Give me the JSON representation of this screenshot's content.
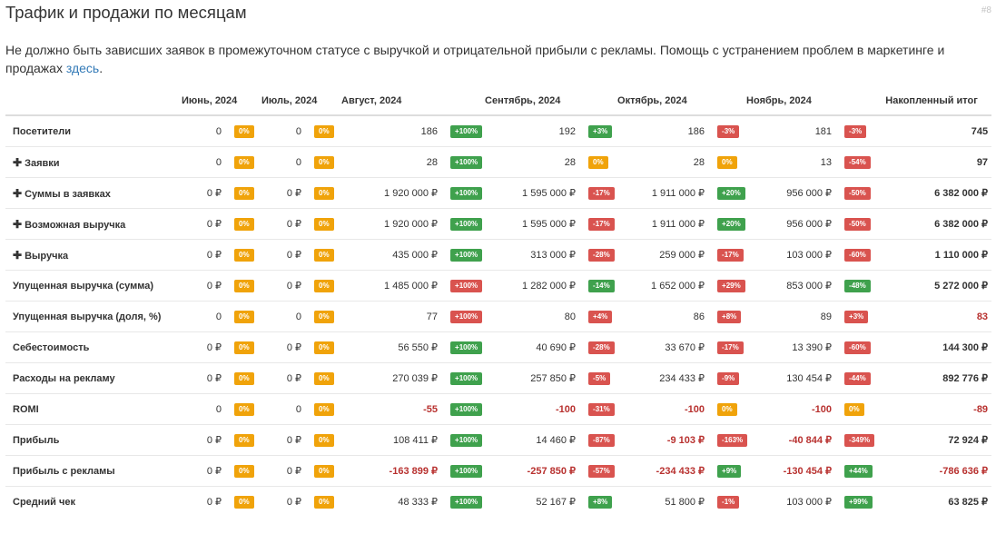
{
  "page": {
    "title": "Трафик и продажи по месяцам",
    "id_label": "#8",
    "description_text": "Не должно быть зависших заявок в промежуточном статусе с выручкой и отрицательной прибыли с рекламы. Помощь с устранением проблем в маркетинге и продажах ",
    "description_link": "здесь",
    "description_tail": "."
  },
  "colors": {
    "orange": "#f0a30a",
    "green": "#3fa14d",
    "red": "#d9534f",
    "negative_text": "#b8312f",
    "link": "#337ab7"
  },
  "table": {
    "headers": [
      "Июнь, 2024",
      "Июль, 2024",
      "Август, 2024",
      "Сентябрь, 2024",
      "Октябрь, 2024",
      "Ноябрь, 2024",
      "Накопленный итог"
    ],
    "rows": [
      {
        "label": "Посетители",
        "expandable": false,
        "cells": [
          {
            "v": "0",
            "p": "0%",
            "c": "orange"
          },
          {
            "v": "0",
            "p": "0%",
            "c": "orange"
          },
          {
            "v": "186",
            "p": "+100%",
            "c": "green"
          },
          {
            "v": "192",
            "p": "+3%",
            "c": "green"
          },
          {
            "v": "186",
            "p": "-3%",
            "c": "red"
          },
          {
            "v": "181",
            "p": "-3%",
            "c": "red"
          }
        ],
        "total": "745",
        "total_neg": false
      },
      {
        "label": "Заявки",
        "expandable": true,
        "cells": [
          {
            "v": "0",
            "p": "0%",
            "c": "orange"
          },
          {
            "v": "0",
            "p": "0%",
            "c": "orange"
          },
          {
            "v": "28",
            "p": "+100%",
            "c": "green"
          },
          {
            "v": "28",
            "p": "0%",
            "c": "orange"
          },
          {
            "v": "28",
            "p": "0%",
            "c": "orange"
          },
          {
            "v": "13",
            "p": "-54%",
            "c": "red"
          }
        ],
        "total": "97",
        "total_neg": false
      },
      {
        "label": "Суммы в заявках",
        "expandable": true,
        "cells": [
          {
            "v": "0 ₽",
            "p": "0%",
            "c": "orange"
          },
          {
            "v": "0 ₽",
            "p": "0%",
            "c": "orange"
          },
          {
            "v": "1 920 000 ₽",
            "p": "+100%",
            "c": "green"
          },
          {
            "v": "1 595 000 ₽",
            "p": "-17%",
            "c": "red"
          },
          {
            "v": "1 911 000 ₽",
            "p": "+20%",
            "c": "green"
          },
          {
            "v": "956 000 ₽",
            "p": "-50%",
            "c": "red"
          }
        ],
        "total": "6 382 000 ₽",
        "total_neg": false
      },
      {
        "label": "Возможная выручка",
        "expandable": true,
        "cells": [
          {
            "v": "0 ₽",
            "p": "0%",
            "c": "orange"
          },
          {
            "v": "0 ₽",
            "p": "0%",
            "c": "orange"
          },
          {
            "v": "1 920 000 ₽",
            "p": "+100%",
            "c": "green"
          },
          {
            "v": "1 595 000 ₽",
            "p": "-17%",
            "c": "red"
          },
          {
            "v": "1 911 000 ₽",
            "p": "+20%",
            "c": "green"
          },
          {
            "v": "956 000 ₽",
            "p": "-50%",
            "c": "red"
          }
        ],
        "total": "6 382 000 ₽",
        "total_neg": false
      },
      {
        "label": "Выручка",
        "expandable": true,
        "cells": [
          {
            "v": "0 ₽",
            "p": "0%",
            "c": "orange"
          },
          {
            "v": "0 ₽",
            "p": "0%",
            "c": "orange"
          },
          {
            "v": "435 000 ₽",
            "p": "+100%",
            "c": "green"
          },
          {
            "v": "313 000 ₽",
            "p": "-28%",
            "c": "red"
          },
          {
            "v": "259 000 ₽",
            "p": "-17%",
            "c": "red"
          },
          {
            "v": "103 000 ₽",
            "p": "-60%",
            "c": "red"
          }
        ],
        "total": "1 110 000 ₽",
        "total_neg": false
      },
      {
        "label": "Упущенная выручка (сумма)",
        "expandable": false,
        "cells": [
          {
            "v": "0 ₽",
            "p": "0%",
            "c": "orange"
          },
          {
            "v": "0 ₽",
            "p": "0%",
            "c": "orange"
          },
          {
            "v": "1 485 000 ₽",
            "p": "+100%",
            "c": "red"
          },
          {
            "v": "1 282 000 ₽",
            "p": "-14%",
            "c": "green"
          },
          {
            "v": "1 652 000 ₽",
            "p": "+29%",
            "c": "red"
          },
          {
            "v": "853 000 ₽",
            "p": "-48%",
            "c": "green"
          }
        ],
        "total": "5 272 000 ₽",
        "total_neg": false
      },
      {
        "label": "Упущенная выручка (доля, %)",
        "expandable": false,
        "cells": [
          {
            "v": "0",
            "p": "0%",
            "c": "orange"
          },
          {
            "v": "0",
            "p": "0%",
            "c": "orange"
          },
          {
            "v": "77",
            "p": "+100%",
            "c": "red"
          },
          {
            "v": "80",
            "p": "+4%",
            "c": "red"
          },
          {
            "v": "86",
            "p": "+8%",
            "c": "red"
          },
          {
            "v": "89",
            "p": "+3%",
            "c": "red"
          }
        ],
        "total": "83",
        "total_neg": true
      },
      {
        "label": "Себестоимость",
        "expandable": false,
        "cells": [
          {
            "v": "0 ₽",
            "p": "0%",
            "c": "orange"
          },
          {
            "v": "0 ₽",
            "p": "0%",
            "c": "orange"
          },
          {
            "v": "56 550 ₽",
            "p": "+100%",
            "c": "green"
          },
          {
            "v": "40 690 ₽",
            "p": "-28%",
            "c": "red"
          },
          {
            "v": "33 670 ₽",
            "p": "-17%",
            "c": "red"
          },
          {
            "v": "13 390 ₽",
            "p": "-60%",
            "c": "red"
          }
        ],
        "total": "144 300 ₽",
        "total_neg": false
      },
      {
        "label": "Расходы на рекламу",
        "expandable": false,
        "cells": [
          {
            "v": "0 ₽",
            "p": "0%",
            "c": "orange"
          },
          {
            "v": "0 ₽",
            "p": "0%",
            "c": "orange"
          },
          {
            "v": "270 039 ₽",
            "p": "+100%",
            "c": "green"
          },
          {
            "v": "257 850 ₽",
            "p": "-5%",
            "c": "red"
          },
          {
            "v": "234 433 ₽",
            "p": "-9%",
            "c": "red"
          },
          {
            "v": "130 454 ₽",
            "p": "-44%",
            "c": "red"
          }
        ],
        "total": "892 776 ₽",
        "total_neg": false
      },
      {
        "label": "ROMI",
        "expandable": false,
        "cells": [
          {
            "v": "0",
            "p": "0%",
            "c": "orange"
          },
          {
            "v": "0",
            "p": "0%",
            "c": "orange"
          },
          {
            "v": "-55",
            "p": "+100%",
            "c": "green",
            "neg": true
          },
          {
            "v": "-100",
            "p": "-31%",
            "c": "red",
            "neg": true
          },
          {
            "v": "-100",
            "p": "0%",
            "c": "orange",
            "neg": true
          },
          {
            "v": "-100",
            "p": "0%",
            "c": "orange",
            "neg": true
          }
        ],
        "total": "-89",
        "total_neg": true
      },
      {
        "label": "Прибыль",
        "expandable": false,
        "cells": [
          {
            "v": "0 ₽",
            "p": "0%",
            "c": "orange"
          },
          {
            "v": "0 ₽",
            "p": "0%",
            "c": "orange"
          },
          {
            "v": "108 411 ₽",
            "p": "+100%",
            "c": "green"
          },
          {
            "v": "14 460 ₽",
            "p": "-87%",
            "c": "red"
          },
          {
            "v": "-9 103 ₽",
            "p": "-163%",
            "c": "red",
            "neg": true
          },
          {
            "v": "-40 844 ₽",
            "p": "-349%",
            "c": "red",
            "neg": true
          }
        ],
        "total": "72 924 ₽",
        "total_neg": false
      },
      {
        "label": "Прибыль с рекламы",
        "expandable": false,
        "cells": [
          {
            "v": "0 ₽",
            "p": "0%",
            "c": "orange"
          },
          {
            "v": "0 ₽",
            "p": "0%",
            "c": "orange"
          },
          {
            "v": "-163 899 ₽",
            "p": "+100%",
            "c": "green",
            "neg": true
          },
          {
            "v": "-257 850 ₽",
            "p": "-57%",
            "c": "red",
            "neg": true
          },
          {
            "v": "-234 433 ₽",
            "p": "+9%",
            "c": "green",
            "neg": true
          },
          {
            "v": "-130 454 ₽",
            "p": "+44%",
            "c": "green",
            "neg": true
          }
        ],
        "total": "-786 636 ₽",
        "total_neg": true
      },
      {
        "label": "Средний чек",
        "expandable": false,
        "cells": [
          {
            "v": "0 ₽",
            "p": "0%",
            "c": "orange"
          },
          {
            "v": "0 ₽",
            "p": "0%",
            "c": "orange"
          },
          {
            "v": "48 333 ₽",
            "p": "+100%",
            "c": "green"
          },
          {
            "v": "52 167 ₽",
            "p": "+8%",
            "c": "green"
          },
          {
            "v": "51 800 ₽",
            "p": "-1%",
            "c": "red"
          },
          {
            "v": "103 000 ₽",
            "p": "+99%",
            "c": "green"
          }
        ],
        "total": "63 825 ₽",
        "total_neg": false
      }
    ]
  }
}
